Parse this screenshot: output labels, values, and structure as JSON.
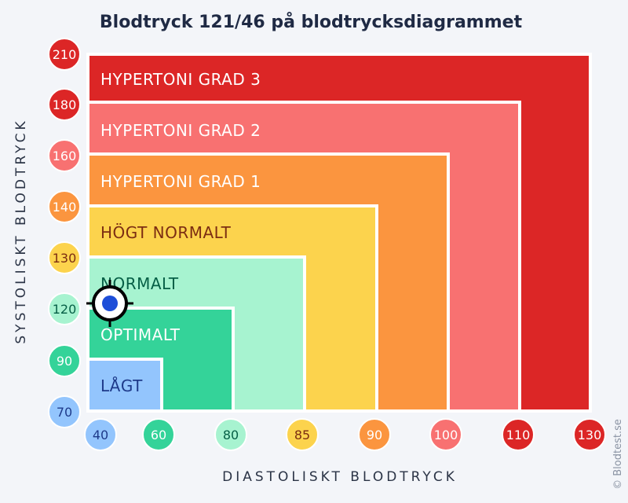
{
  "chart_data": {
    "type": "heatmap",
    "title": "Blodtryck 121/46 på blodtrycksdiagrammet",
    "xlabel": "DIASTOLISKT BLODTRYCK",
    "ylabel": "SYSTOLISKT BLODTRYCK",
    "x_ticks": [
      "40",
      "60",
      "80",
      "85",
      "90",
      "100",
      "110",
      "130"
    ],
    "y_ticks": [
      "210",
      "180",
      "160",
      "140",
      "130",
      "120",
      "90",
      "70"
    ],
    "zones": [
      {
        "label": "HYPERTONI GRAD 3",
        "color": "#dc2626",
        "text_color": "#ffffff",
        "max_diastolic": 130,
        "max_systolic": 210
      },
      {
        "label": "HYPERTONI GRAD 2",
        "color": "#f87171",
        "text_color": "#ffffff",
        "max_diastolic": 110,
        "max_systolic": 180
      },
      {
        "label": "HYPERTONI GRAD 1",
        "color": "#fb953f",
        "text_color": "#ffffff",
        "max_diastolic": 100,
        "max_systolic": 160
      },
      {
        "label": "HÖGT NORMALT",
        "color": "#fcd34d",
        "text_color": "#7c2d12",
        "max_diastolic": 90,
        "max_systolic": 140
      },
      {
        "label": "NORMALT",
        "color": "#a7f3d0",
        "text_color": "#065f46",
        "max_diastolic": 85,
        "max_systolic": 130
      },
      {
        "label": "OPTIMALT",
        "color": "#34d399",
        "text_color": "#ffffff",
        "max_diastolic": 80,
        "max_systolic": 120
      },
      {
        "label": "LÅGT",
        "color": "#93c5fd",
        "text_color": "#1e3a8a",
        "max_diastolic": 60,
        "max_systolic": 90
      }
    ],
    "marker": {
      "systolic": 121,
      "diastolic": 46,
      "color": "#1d4ed8"
    },
    "tick_colors": {
      "40": "#93c5fd",
      "60": "#34d399",
      "80": "#a7f3d0",
      "85": "#fcd34d",
      "90": "#fb953f",
      "100": "#f87171",
      "110": "#dc2626",
      "130": "#dc2626",
      "210": "#dc2626",
      "180": "#dc2626",
      "160": "#f87171",
      "140": "#fb953f",
      "120": "#a7f3d0",
      "70": "#93c5fd"
    },
    "tick_text_colors": {
      "40": "#1e3a8a",
      "60": "#ffffff",
      "80": "#065f46",
      "85": "#7c2d12",
      "90": "#ffffff",
      "100": "#ffffff",
      "110": "#ffffff",
      "130": "#7c2d12",
      "210": "#ffffff",
      "180": "#ffffff",
      "160": "#ffffff",
      "140": "#ffffff",
      "120": "#065f46",
      "90y": "#ffffff",
      "70": "#1e3a8a"
    },
    "y_tick_colors": [
      "#dc2626",
      "#dc2626",
      "#f87171",
      "#fb953f",
      "#fcd34d",
      "#a7f3d0",
      "#34d399",
      "#93c5fd"
    ],
    "y_tick_text_colors": [
      "#ffffff",
      "#ffffff",
      "#ffffff",
      "#ffffff",
      "#7c2d12",
      "#065f46",
      "#ffffff",
      "#1e3a8a"
    ],
    "x_tick_colors": [
      "#93c5fd",
      "#34d399",
      "#a7f3d0",
      "#fcd34d",
      "#fb953f",
      "#f87171",
      "#dc2626",
      "#dc2626"
    ],
    "x_tick_text_colors": [
      "#1e3a8a",
      "#ffffff",
      "#065f46",
      "#7c2d12",
      "#ffffff",
      "#ffffff",
      "#ffffff",
      "#ffffff"
    ],
    "credit": "© Blodtest.se"
  }
}
